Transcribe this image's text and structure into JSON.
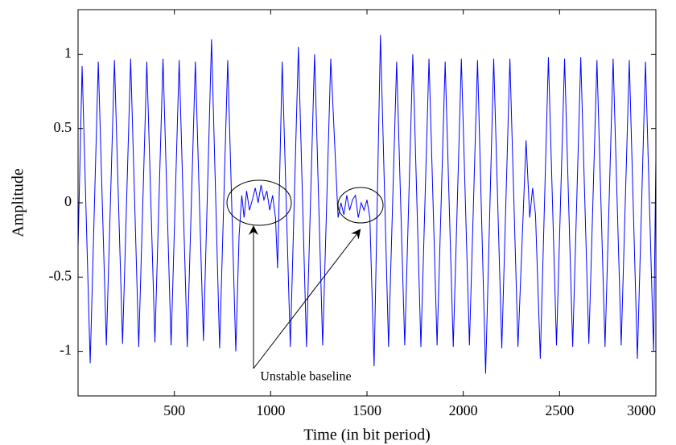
{
  "chart_data": {
    "type": "line",
    "xlabel": "Time (in bit period)",
    "ylabel": "Amplitude",
    "annotation": "Unstable baseline",
    "color": "#0000ff",
    "xlim": [
      0,
      3000
    ],
    "xticks": [
      500,
      1000,
      1500,
      2000,
      2500,
      3000
    ],
    "ylim": [
      -1.3,
      1.3
    ],
    "yticks": [
      -1,
      -0.5,
      0,
      0.5,
      1
    ],
    "x": [
      0,
      21,
      63,
      105,
      147,
      189,
      231,
      273,
      315,
      357,
      399,
      441,
      483,
      525,
      567,
      609,
      651,
      693,
      735,
      777,
      819,
      836,
      850,
      862,
      875,
      890,
      905,
      920,
      935,
      950,
      965,
      980,
      995,
      1010,
      1025,
      1036,
      1060,
      1102,
      1144,
      1186,
      1228,
      1270,
      1312,
      1350,
      1365,
      1380,
      1395,
      1410,
      1425,
      1440,
      1455,
      1470,
      1485,
      1500,
      1515,
      1537,
      1570,
      1612,
      1654,
      1696,
      1738,
      1780,
      1822,
      1864,
      1906,
      1948,
      1990,
      2032,
      2074,
      2116,
      2158,
      2200,
      2242,
      2284,
      2326,
      2345,
      2360,
      2375,
      2400,
      2442,
      2484,
      2526,
      2568,
      2610,
      2652,
      2694,
      2736,
      2778,
      2820,
      2862,
      2904,
      2946,
      2988,
      3000
    ],
    "values": [
      -0.3,
      0.92,
      -1.08,
      0.95,
      -0.96,
      0.96,
      -0.95,
      0.97,
      -0.97,
      0.95,
      -0.94,
      0.97,
      -0.96,
      0.96,
      -0.97,
      0.95,
      -0.93,
      1.1,
      -0.98,
      0.96,
      -1.0,
      -0.22,
      0.05,
      -0.1,
      0.08,
      -0.05,
      0.02,
      0.1,
      0.0,
      0.12,
      0.02,
      0.08,
      -0.05,
      0.05,
      -0.1,
      -0.44,
      0.95,
      -0.97,
      1.05,
      -0.97,
      1.0,
      -0.96,
      0.97,
      -0.1,
      0.0,
      -0.08,
      0.05,
      -0.05,
      0.02,
      0.05,
      -0.1,
      0.0,
      -0.05,
      0.02,
      -0.1,
      -1.1,
      1.13,
      -0.97,
      0.95,
      -0.96,
      1.0,
      -0.97,
      0.97,
      -0.96,
      0.95,
      -0.97,
      0.97,
      -0.96,
      0.96,
      -1.15,
      0.97,
      -0.98,
      0.97,
      -0.97,
      0.42,
      -0.1,
      0.1,
      -0.08,
      -1.05,
      0.98,
      -0.96,
      0.97,
      -0.97,
      0.98,
      -0.95,
      0.96,
      -0.97,
      0.97,
      -0.96,
      0.96,
      -1.05,
      0.95,
      -1.0,
      0.3
    ]
  }
}
